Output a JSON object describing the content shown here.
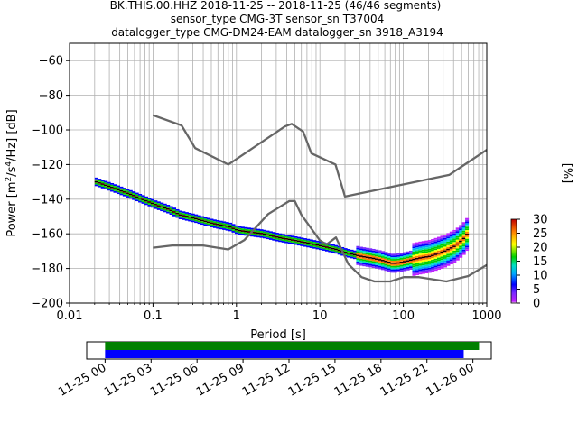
{
  "title": {
    "line1": "BK.THIS.00.HHZ   2018-11-25 -- 2018-11-25  (46/46 segments)",
    "line2": "sensor_type CMG-3T sensor_sn T37004",
    "line3": "datalogger_type CMG-DM24-EAM datalogger_sn 3918_A3194"
  },
  "chart_data": {
    "type": "heatmap",
    "xlabel": "Period [s]",
    "ylabel": "Power [m²/s⁴/Hz] [dB]",
    "x_scale": "log",
    "xlim": [
      0.01,
      1000
    ],
    "ylim": [
      -200,
      -50
    ],
    "x_ticks": [
      {
        "value": 0.01,
        "label": "0.01"
      },
      {
        "value": 0.1,
        "label": "0.1"
      },
      {
        "value": 1,
        "label": "1"
      },
      {
        "value": 10,
        "label": "10"
      },
      {
        "value": 100,
        "label": "100"
      },
      {
        "value": 1000,
        "label": "1000"
      }
    ],
    "y_ticks": [
      {
        "value": -60,
        "label": "−60"
      },
      {
        "value": -80,
        "label": "−80"
      },
      {
        "value": -100,
        "label": "−100"
      },
      {
        "value": -120,
        "label": "−120"
      },
      {
        "value": -140,
        "label": "−140"
      },
      {
        "value": -160,
        "label": "−160"
      },
      {
        "value": -180,
        "label": "−180"
      },
      {
        "value": -200,
        "label": "−200"
      }
    ],
    "grid": true,
    "noise_model_high": {
      "x": [
        0.1,
        0.22,
        0.32,
        0.8,
        3.8,
        4.6,
        6.3,
        7.9,
        15.4,
        20,
        354.8,
        1000
      ],
      "y": [
        -91.5,
        -97.4,
        -110.5,
        -120,
        -98,
        -96.5,
        -101,
        -113.5,
        -120,
        -138.5,
        -126,
        -111.5
      ]
    },
    "noise_model_low": {
      "x": [
        0.1,
        0.17,
        0.4,
        0.8,
        1.24,
        2.4,
        4.3,
        5.0,
        6.0,
        10,
        12,
        15.6,
        21.9,
        31.6,
        45,
        70,
        101,
        154,
        328,
        600,
        1000
      ],
      "y": [
        -168,
        -166.7,
        -166.7,
        -169,
        -163.7,
        -148.6,
        -141.1,
        -141.1,
        -149,
        -163.8,
        -166.2,
        -162.1,
        -177.5,
        -185,
        -187.5,
        -187.5,
        -185,
        -185,
        -187.5,
        -184.4,
        -178
      ]
    },
    "ppsd_mode": {
      "x": [
        0.02,
        0.03,
        0.05,
        0.08,
        0.1,
        0.15,
        0.2,
        0.3,
        0.5,
        0.8,
        1,
        2,
        3,
        5,
        8,
        10,
        15,
        20,
        30,
        40,
        50,
        60,
        70,
        80,
        100,
        150,
        200,
        300,
        400,
        500,
        600
      ],
      "y": [
        -130,
        -133,
        -137,
        -141,
        -143,
        -146,
        -149,
        -151,
        -154,
        -156,
        -158,
        -160,
        -162,
        -164,
        -166,
        -167,
        -169,
        -171,
        -173,
        -174,
        -175,
        -176,
        -177,
        -177,
        -176,
        -174,
        -173,
        -170,
        -167,
        -163,
        -158
      ]
    },
    "colorbar": {
      "label": "[%]",
      "min": 0,
      "max": 30,
      "ticks": [
        {
          "value": 0,
          "label": "0"
        },
        {
          "value": 5,
          "label": "5"
        },
        {
          "value": 10,
          "label": "10"
        },
        {
          "value": 15,
          "label": "15"
        },
        {
          "value": 20,
          "label": "20"
        },
        {
          "value": 25,
          "label": "25"
        },
        {
          "value": 30,
          "label": "30"
        }
      ]
    },
    "coverage": {
      "x_ticks": [
        "11-25 00",
        "11-25 03",
        "11-25 06",
        "11-25 09",
        "11-25 12",
        "11-25 15",
        "11-25 18",
        "11-25 21",
        "11-26 00"
      ],
      "x_tick_hours": [
        0,
        3,
        6,
        9,
        12,
        15,
        18,
        21,
        24
      ],
      "xlim_hours": [
        -1.2,
        25.2
      ],
      "bars": [
        {
          "color": "#008000",
          "start_hour": 0,
          "end_hour": 24.4
        },
        {
          "color": "#0000ff",
          "start_hour": 0,
          "end_hour": 23.4
        }
      ]
    }
  }
}
